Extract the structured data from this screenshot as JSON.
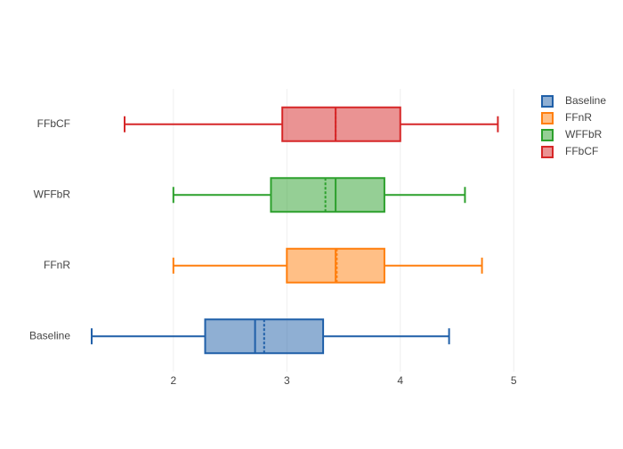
{
  "chart_data": {
    "type": "box",
    "orientation": "horizontal",
    "series": [
      {
        "name": "Baseline",
        "color": "#1f5fa8",
        "min": 1.28,
        "q1": 2.28,
        "median": 2.72,
        "mean": 2.8,
        "q3": 3.32,
        "max": 4.43
      },
      {
        "name": "FFnR",
        "color": "#ff7f0e",
        "min": 2.0,
        "q1": 3.0,
        "median": 3.43,
        "mean": 3.44,
        "q3": 3.86,
        "max": 4.72
      },
      {
        "name": "WFFbR",
        "color": "#2ca02c",
        "min": 2.0,
        "q1": 2.86,
        "median": 3.43,
        "mean": 3.34,
        "q3": 3.86,
        "max": 4.57
      },
      {
        "name": "FFbCF",
        "color": "#d62728",
        "min": 1.57,
        "q1": 2.96,
        "median": 3.43,
        "mean": 3.43,
        "q3": 4.0,
        "max": 4.86
      }
    ],
    "xlim": [
      1.17,
      5.1
    ],
    "xticks": [
      2,
      3,
      4,
      5
    ],
    "grid": true,
    "legend": "top-right"
  }
}
